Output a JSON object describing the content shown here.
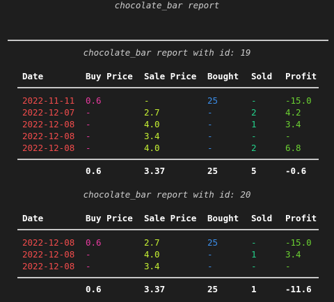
{
  "report": {
    "title": "chocolate_bar report"
  },
  "headers": [
    "Date",
    "Buy Price",
    "Sale Price",
    "Bought",
    "Sold",
    "Profit"
  ],
  "sections": [
    {
      "title": "chocolate_bar report with id: 19",
      "rows": [
        [
          "2022-11-11",
          "0.6",
          "-",
          "25",
          "-",
          "-15.0"
        ],
        [
          "2022-12-07",
          "-",
          "2.7",
          "-",
          "2",
          "4.2"
        ],
        [
          "2022-12-08",
          "-",
          "4.0",
          "-",
          "1",
          "3.4"
        ],
        [
          "2022-12-08",
          "-",
          "3.4",
          "-",
          "-",
          "-"
        ],
        [
          "2022-12-08",
          "-",
          "4.0",
          "-",
          "2",
          "6.8"
        ]
      ],
      "totals": [
        "",
        "0.6",
        "3.37",
        "25",
        "5",
        "-0.6"
      ]
    },
    {
      "title": "chocolate_bar report with id: 20",
      "rows": [
        [
          "2022-12-08",
          "0.6",
          "2.7",
          "25",
          "-",
          "-15.0"
        ],
        [
          "2022-12-08",
          "-",
          "4.0",
          "-",
          "1",
          "3.4"
        ],
        [
          "2022-12-08",
          "-",
          "3.4",
          "-",
          "-",
          "-"
        ]
      ],
      "totals": [
        "",
        "0.6",
        "3.37",
        "25",
        "1",
        "-11.6"
      ]
    }
  ],
  "colors": {
    "background": "#1e1e1e",
    "date": "#f14c4c",
    "buy_price": "#e83ba0",
    "sale_price": "#c5f033",
    "bought": "#3b8eea",
    "sold": "#23d18b",
    "profit": "#6bd132"
  }
}
